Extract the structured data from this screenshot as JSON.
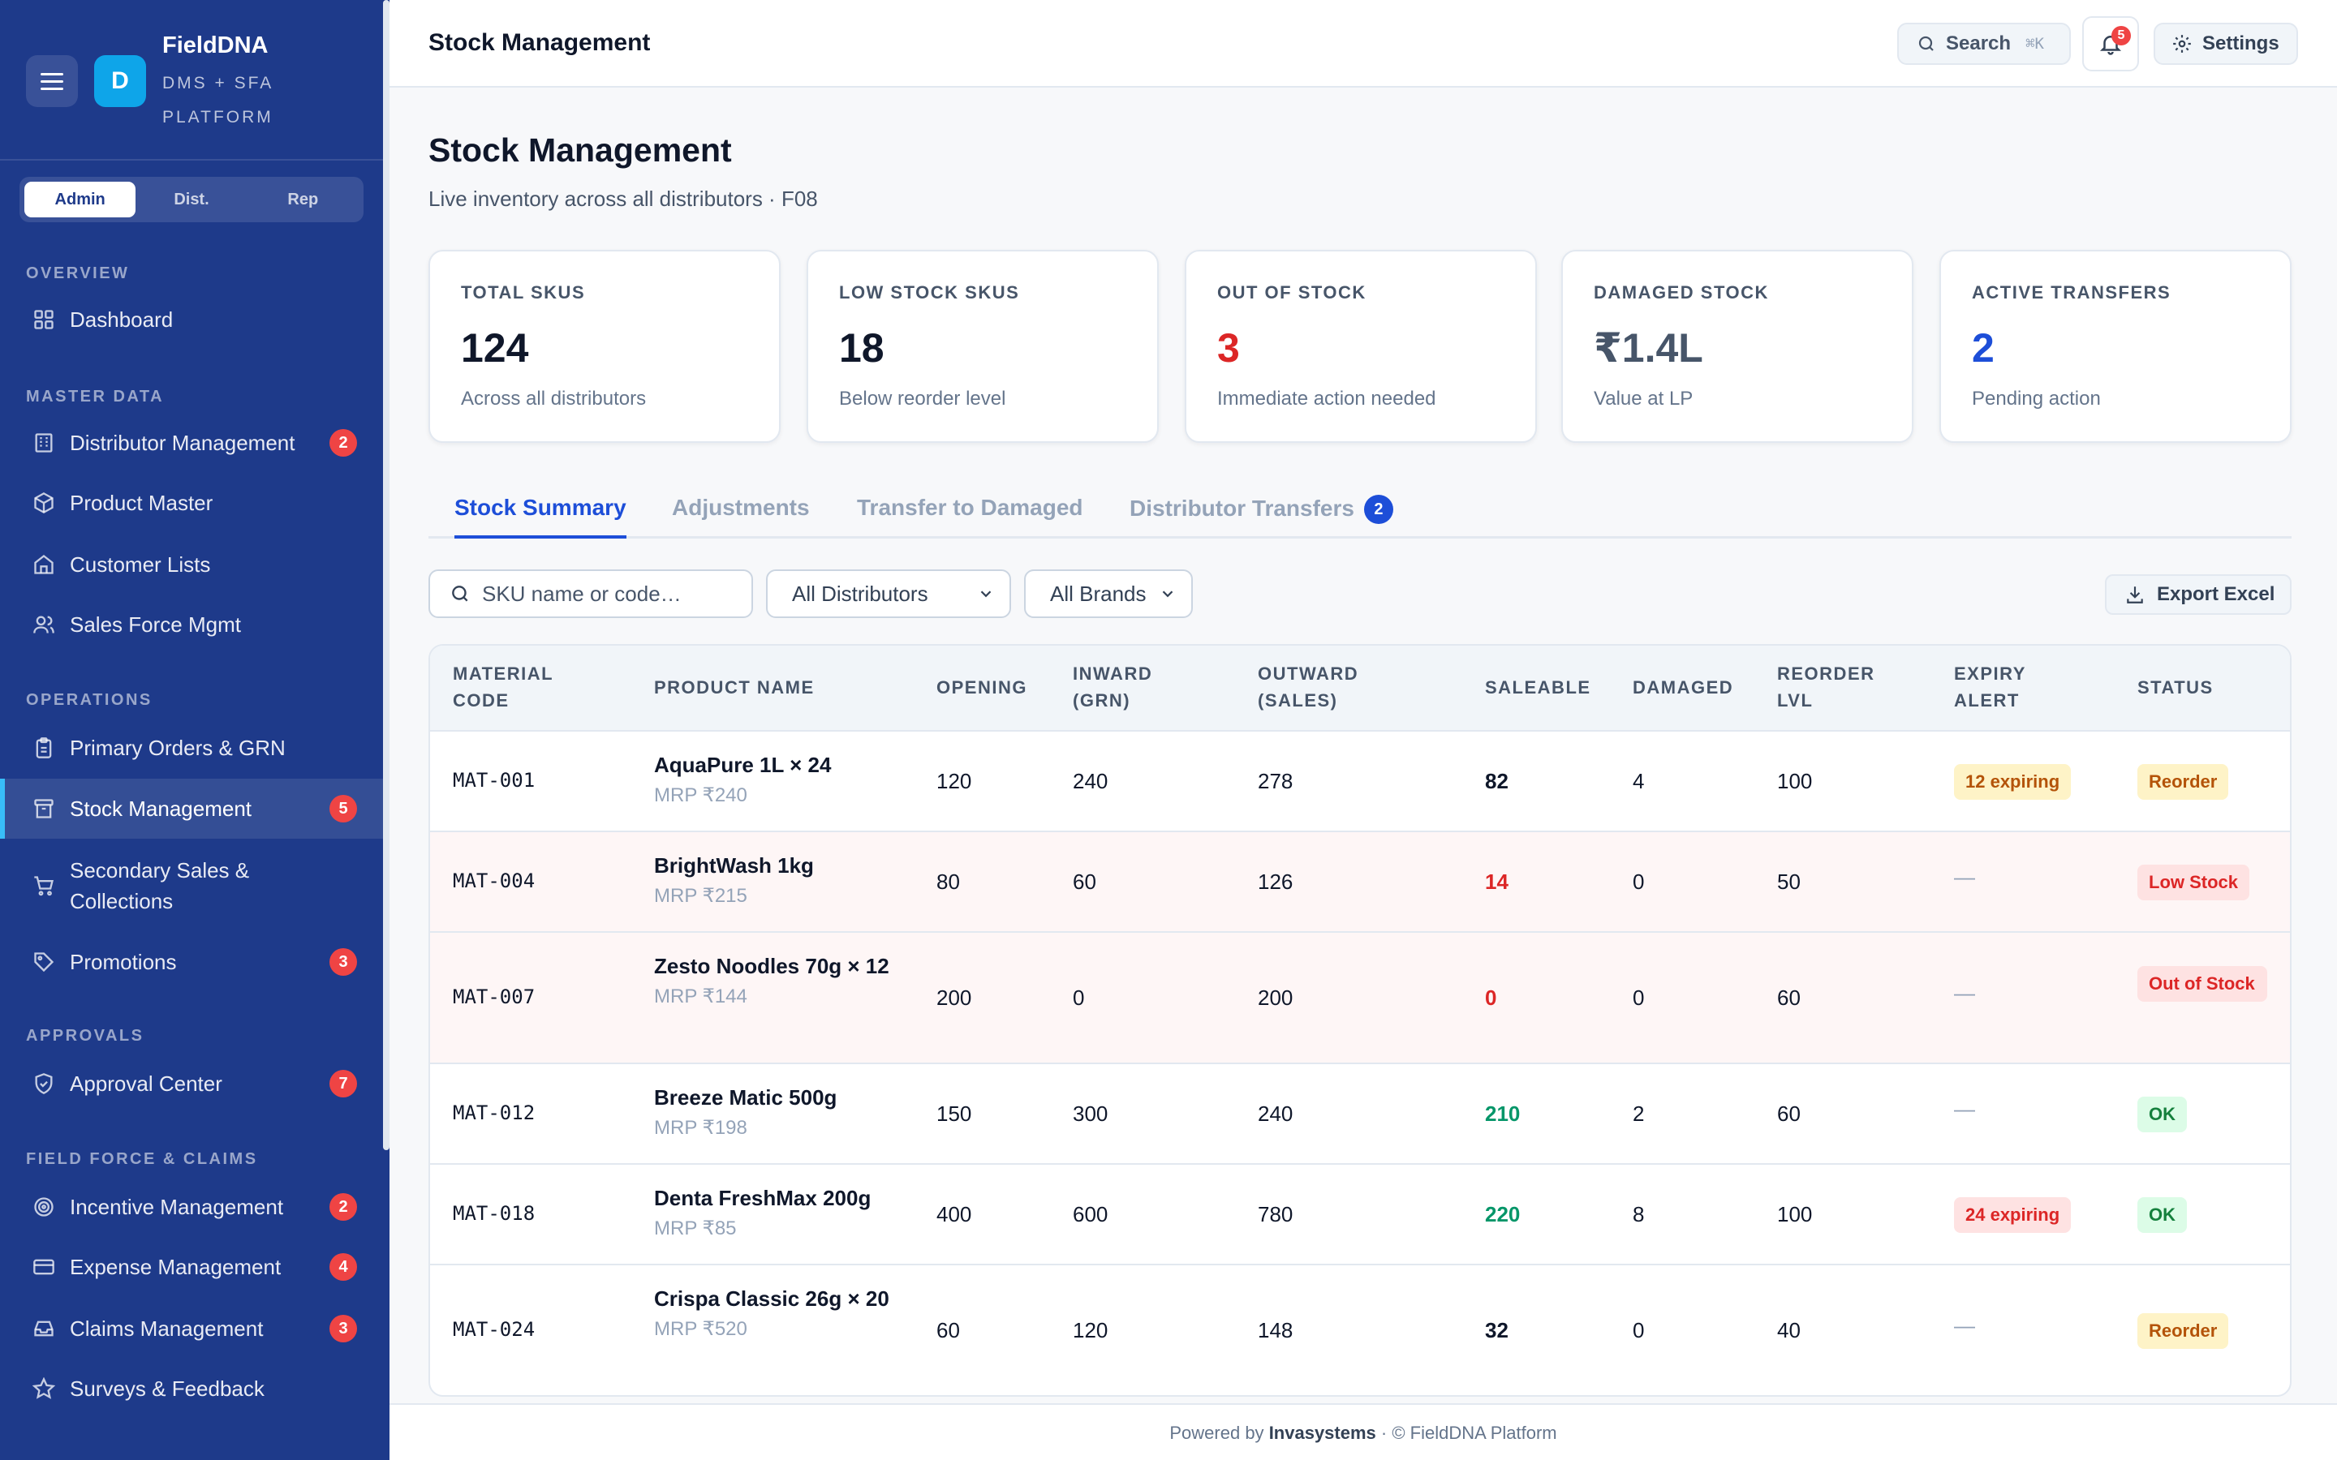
{
  "app": {
    "name": "FieldDNA",
    "subtitle": "DMS + SFA PLATFORM",
    "logo_letter": "D"
  },
  "roles": [
    "Admin",
    "Dist.",
    "Rep"
  ],
  "active_role": "Admin",
  "sidebar": {
    "sections": {
      "overview": "OVERVIEW",
      "master": "MASTER DATA",
      "operations": "OPERATIONS",
      "approvals": "APPROVALS",
      "field": "FIELD FORCE & CLAIMS"
    },
    "items": [
      {
        "label": "Dashboard",
        "icon": "grid-icon"
      },
      {
        "label": "Distributor Management",
        "icon": "building-icon",
        "badge": "2"
      },
      {
        "label": "Product Master",
        "icon": "box-icon"
      },
      {
        "label": "Customer Lists",
        "icon": "store-icon"
      },
      {
        "label": "Sales Force Mgmt",
        "icon": "users-icon"
      },
      {
        "label": "Primary Orders & GRN",
        "icon": "clipboard-icon"
      },
      {
        "label": "Stock Management",
        "icon": "archive-icon",
        "badge": "5",
        "active": true
      },
      {
        "label": "Secondary Sales & Collections",
        "icon": "cart-icon"
      },
      {
        "label": "Promotions",
        "icon": "tag-icon",
        "badge": "3"
      },
      {
        "label": "Approval Center",
        "icon": "shield-check-icon",
        "badge": "7"
      },
      {
        "label": "Incentive Management",
        "icon": "target-icon",
        "badge": "2"
      },
      {
        "label": "Expense Management",
        "icon": "credit-card-icon",
        "badge": "4"
      },
      {
        "label": "Claims Management",
        "icon": "inbox-icon",
        "badge": "3"
      },
      {
        "label": "Surveys & Feedback",
        "icon": "star-icon"
      }
    ]
  },
  "topbar": {
    "title": "Stock Management",
    "search_label": "Search",
    "search_shortcut": "⌘K",
    "notifications": "5",
    "settings_label": "Settings"
  },
  "page": {
    "title": "Stock Management",
    "subtitle": "Live inventory across all distributors · F08"
  },
  "kpis": [
    {
      "label": "TOTAL SKUS",
      "value": "124",
      "desc": "Across all distributors",
      "color": "#0f172a"
    },
    {
      "label": "LOW STOCK SKUS",
      "value": "18",
      "desc": "Below reorder level",
      "color": "#0f172a"
    },
    {
      "label": "OUT OF STOCK",
      "value": "3",
      "desc": "Immediate action needed",
      "color": "#dc2626"
    },
    {
      "label": "DAMAGED STOCK",
      "value": "₹1.4L",
      "desc": "Value at LP",
      "color": "#475569"
    },
    {
      "label": "ACTIVE TRANSFERS",
      "value": "2",
      "desc": "Pending action",
      "color": "#1d4ed8"
    }
  ],
  "tabs": {
    "summary": "Stock Summary",
    "adjustments": "Adjustments",
    "damaged": "Transfer to Damaged",
    "transfers": "Distributor Transfers",
    "transfers_badge": "2"
  },
  "filters": {
    "search_placeholder": "SKU name or code…",
    "distributor": "All Distributors",
    "brand": "All Brands",
    "export_label": "Export Excel"
  },
  "table": {
    "headers": {
      "code": "MATERIAL\nCODE",
      "name": "PRODUCT NAME",
      "opening": "OPENING",
      "inward": "INWARD\n(GRN)",
      "outward": "OUTWARD\n(SALES)",
      "saleable": "SALEABLE",
      "damaged": "DAMAGED",
      "reorder": "REORDER\nLVL",
      "expiry": "EXPIRY\nALERT",
      "status": "STATUS"
    },
    "rows": [
      {
        "code": "MAT-001",
        "name": "AquaPure 1L × 24",
        "mrp": "MRP ₹240",
        "opening": "120",
        "inward": "240",
        "outward": "278",
        "saleable": "82",
        "damaged": "4",
        "reorder": "100",
        "expiry": "12 expiring",
        "status": "Reorder"
      },
      {
        "code": "MAT-004",
        "name": "BrightWash 1kg",
        "mrp": "MRP ₹215",
        "opening": "80",
        "inward": "60",
        "outward": "126",
        "saleable": "14",
        "damaged": "0",
        "reorder": "50",
        "expiry": "—",
        "status": "Low Stock"
      },
      {
        "code": "MAT-007",
        "name": "Zesto Noodles 70g × 12",
        "mrp": "MRP ₹144",
        "opening": "200",
        "inward": "0",
        "outward": "200",
        "saleable": "0",
        "damaged": "0",
        "reorder": "60",
        "expiry": "—",
        "status": "Out of Stock"
      },
      {
        "code": "MAT-012",
        "name": "Breeze Matic 500g",
        "mrp": "MRP ₹198",
        "opening": "150",
        "inward": "300",
        "outward": "240",
        "saleable": "210",
        "damaged": "2",
        "reorder": "60",
        "expiry": "—",
        "status": "OK"
      },
      {
        "code": "MAT-018",
        "name": "Denta FreshMax 200g",
        "mrp": "MRP ₹85",
        "opening": "400",
        "inward": "600",
        "outward": "780",
        "saleable": "220",
        "damaged": "8",
        "reorder": "100",
        "expiry": "24 expiring",
        "status": "OK"
      },
      {
        "code": "MAT-024",
        "name": "Crispa Classic 26g × 20",
        "mrp": "MRP ₹520",
        "opening": "60",
        "inward": "120",
        "outward": "148",
        "saleable": "32",
        "damaged": "0",
        "reorder": "40",
        "expiry": "—",
        "status": "Reorder"
      }
    ]
  },
  "footer": {
    "prefix": "Powered by",
    "company": "Invasystems",
    "suffix": "· © FieldDNA Platform"
  }
}
